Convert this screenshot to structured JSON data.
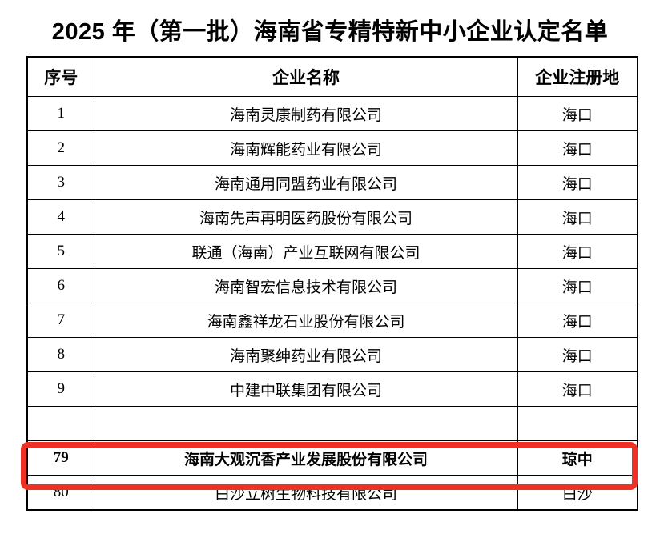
{
  "title": "2025 年（第一批）海南省专精特新中小企业认定名单",
  "colors": {
    "highlight_border": "#ee3124",
    "text": "#000000",
    "table_border": "#000000",
    "background": "#ffffff"
  },
  "table": {
    "headers": [
      "序号",
      "企业名称",
      "企业注册地"
    ],
    "rows": [
      {
        "seq": "1",
        "name": "海南灵康制药有限公司",
        "location": "海口",
        "highlight": false
      },
      {
        "seq": "2",
        "name": "海南辉能药业有限公司",
        "location": "海口",
        "highlight": false
      },
      {
        "seq": "3",
        "name": "海南通用同盟药业有限公司",
        "location": "海口",
        "highlight": false
      },
      {
        "seq": "4",
        "name": "海南先声再明医药股份有限公司",
        "location": "海口",
        "highlight": false
      },
      {
        "seq": "5",
        "name": "联通（海南）产业互联网有限公司",
        "location": "海口",
        "highlight": false
      },
      {
        "seq": "6",
        "name": "海南智宏信息技术有限公司",
        "location": "海口",
        "highlight": false
      },
      {
        "seq": "7",
        "name": "海南鑫祥龙石业股份有限公司",
        "location": "海口",
        "highlight": false
      },
      {
        "seq": "8",
        "name": "海南聚绅药业有限公司",
        "location": "海口",
        "highlight": false
      },
      {
        "seq": "9",
        "name": "中建中联集团有限公司",
        "location": "海口",
        "highlight": false
      },
      {
        "seq": "",
        "name": "",
        "location": "",
        "highlight": false
      },
      {
        "seq": "79",
        "name": "海南大观沉香产业发展股份有限公司",
        "location": "琼中",
        "highlight": true
      },
      {
        "seq": "80",
        "name": "白沙立树生物科技有限公司",
        "location": "白沙",
        "highlight": false
      }
    ]
  }
}
